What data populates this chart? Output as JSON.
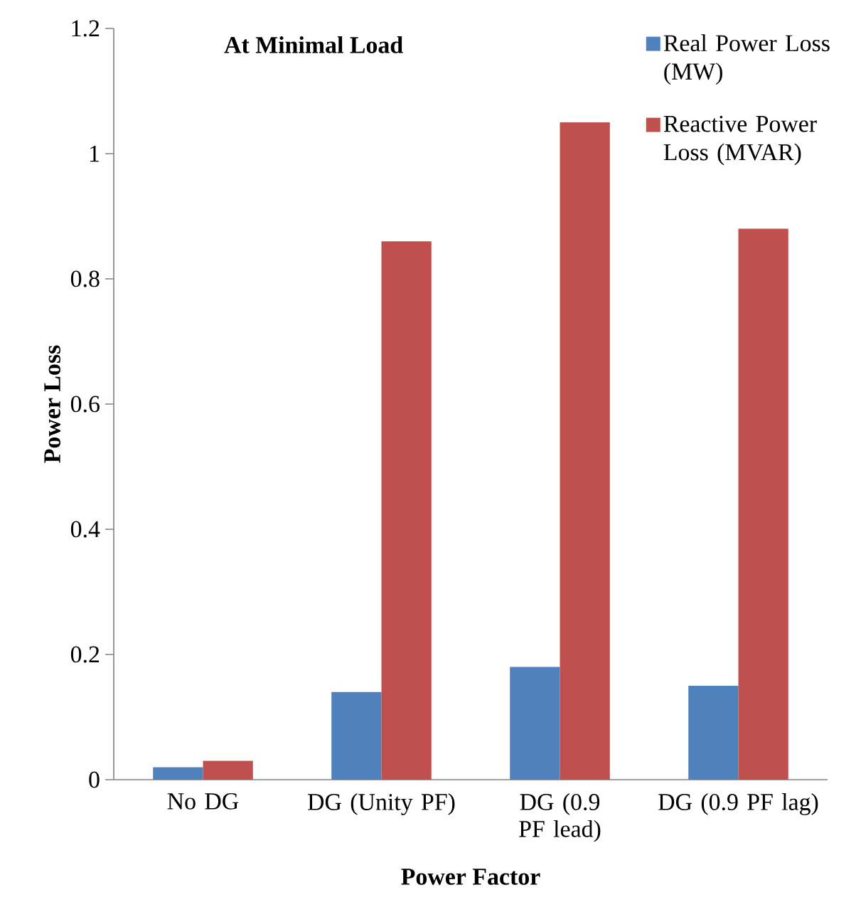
{
  "chart_data": {
    "type": "bar",
    "title": "At Minimal Load",
    "xlabel": "Power Factor",
    "ylabel": "Power Loss",
    "categories": [
      "No DG",
      "DG (Unity PF)",
      "DG (0.9 PF lead)",
      "DG (0.9 PF lag)"
    ],
    "series": [
      {
        "name": "Real Power Loss (MW)",
        "color": "#4f81bd",
        "values": [
          0.02,
          0.14,
          0.18,
          0.15
        ]
      },
      {
        "name": "Reactive Power Loss (MVAR)",
        "color": "#c0504d",
        "values": [
          0.03,
          0.86,
          1.05,
          0.88
        ]
      }
    ],
    "ylim": [
      0,
      1.2
    ],
    "yticks": [
      {
        "value": 0,
        "label": "0"
      },
      0.2,
      0.4,
      0.6,
      0.8,
      {
        "value": 1,
        "label": "1"
      },
      1.2
    ],
    "legend": "top right"
  }
}
